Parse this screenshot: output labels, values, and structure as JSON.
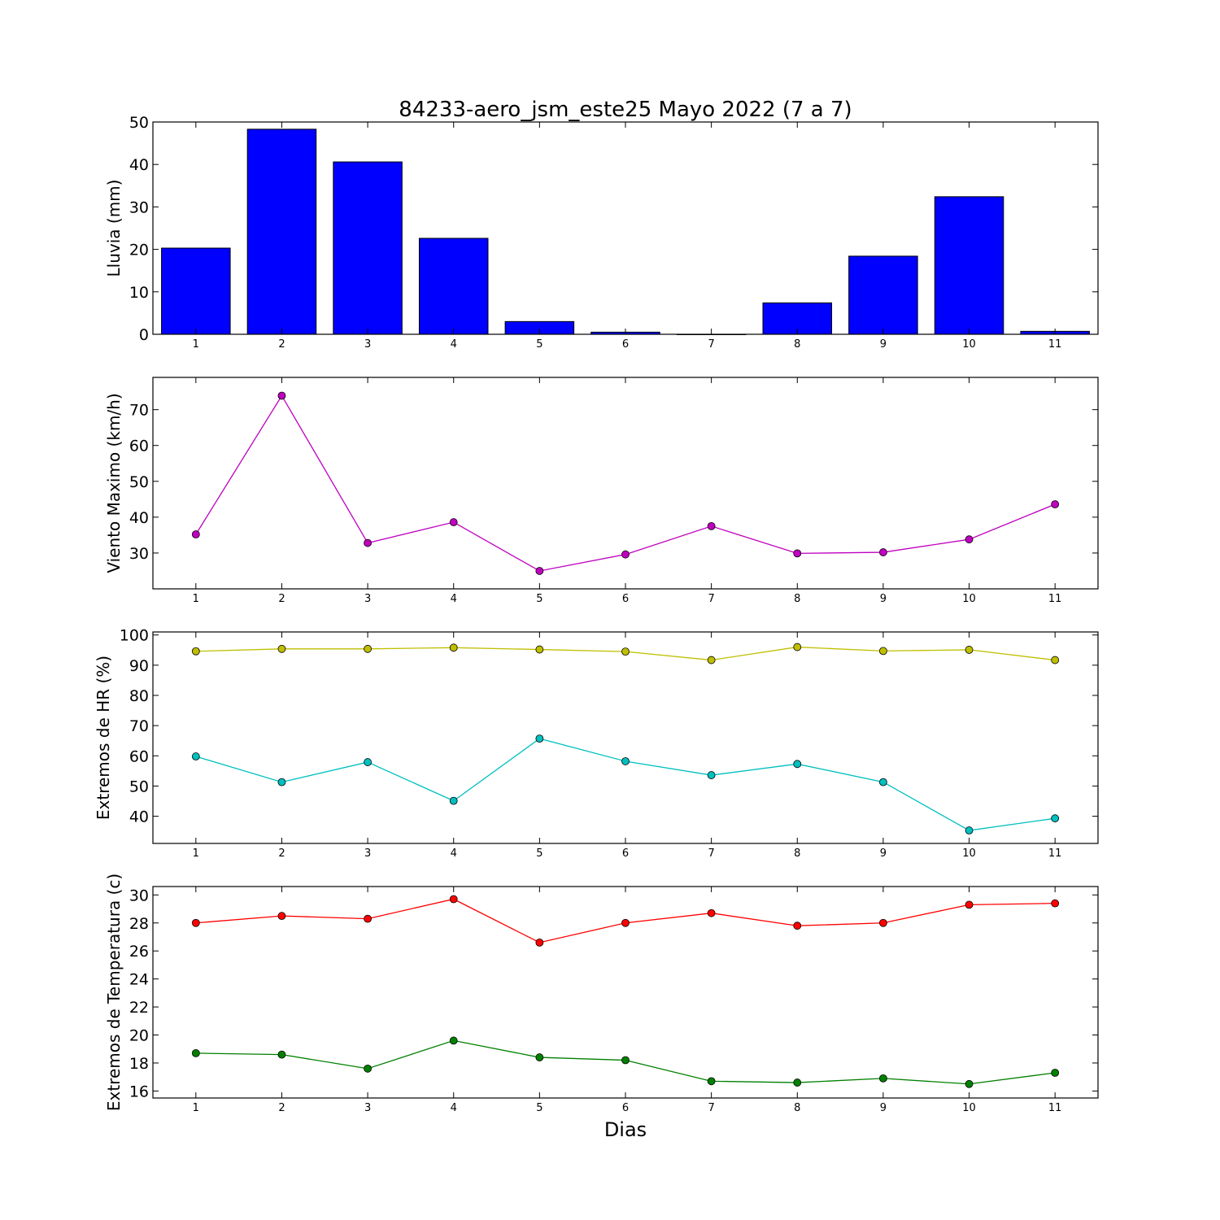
{
  "title": "84233-aero_jsm_este25 Mayo 2022  (7 a 7)",
  "xlabel": "Dias",
  "chart_data": [
    {
      "type": "bar",
      "ylabel": "Lluvia (mm)",
      "categories": [
        1,
        2,
        3,
        4,
        5,
        6,
        7,
        8,
        9,
        10,
        11
      ],
      "xlim": [
        0.5,
        11.5
      ],
      "ylim": [
        0,
        50
      ],
      "yticks": [
        0,
        10,
        20,
        30,
        40,
        50
      ],
      "grid": false,
      "series": [
        {
          "color": "#0000ff",
          "values": [
            20.3,
            48.3,
            40.6,
            22.6,
            3.0,
            0.5,
            0.0,
            7.4,
            18.4,
            32.4,
            0.7
          ]
        }
      ]
    },
    {
      "type": "line",
      "ylabel": "Viento Maximo (km/h)",
      "x": [
        1,
        2,
        3,
        4,
        5,
        6,
        7,
        8,
        9,
        10,
        11
      ],
      "xlim": [
        0.5,
        11.5
      ],
      "ylim": [
        20,
        79
      ],
      "yticks": [
        30,
        40,
        50,
        60,
        70
      ],
      "grid": false,
      "series": [
        {
          "color": "#bf00bf",
          "values": [
            35.2,
            73.9,
            32.8,
            38.6,
            25.0,
            29.6,
            37.5,
            29.9,
            30.2,
            33.8,
            43.6
          ]
        }
      ]
    },
    {
      "type": "line",
      "ylabel": "Extremos de HR (%)",
      "x": [
        1,
        2,
        3,
        4,
        5,
        6,
        7,
        8,
        9,
        10,
        11
      ],
      "xlim": [
        0.5,
        11.5
      ],
      "ylim": [
        31,
        101
      ],
      "yticks": [
        40,
        50,
        60,
        70,
        80,
        90,
        100
      ],
      "grid": false,
      "series": [
        {
          "color": "#bfbf00",
          "values": [
            94.6,
            95.4,
            95.4,
            95.8,
            95.2,
            94.5,
            91.7,
            96.0,
            94.7,
            95.1,
            91.7
          ]
        },
        {
          "color": "#00bfbf",
          "values": [
            59.8,
            51.3,
            57.9,
            45.1,
            65.7,
            58.2,
            53.6,
            57.3,
            51.3,
            35.3,
            39.3
          ]
        }
      ]
    },
    {
      "type": "line",
      "ylabel": "Extremos de Temperatura (c)",
      "x": [
        1,
        2,
        3,
        4,
        5,
        6,
        7,
        8,
        9,
        10,
        11
      ],
      "xlim": [
        0.5,
        11.5
      ],
      "ylim": [
        15.5,
        30.6
      ],
      "yticks": [
        16,
        18,
        20,
        22,
        24,
        26,
        28,
        30
      ],
      "grid": false,
      "series": [
        {
          "color": "#ff0000",
          "values": [
            28.0,
            28.5,
            28.3,
            29.7,
            26.6,
            28.0,
            28.7,
            27.8,
            28.0,
            29.3,
            29.4
          ]
        },
        {
          "color": "#008000",
          "values": [
            18.7,
            18.6,
            17.6,
            19.6,
            18.4,
            18.2,
            16.7,
            16.6,
            16.9,
            16.5,
            17.3
          ]
        }
      ]
    }
  ]
}
